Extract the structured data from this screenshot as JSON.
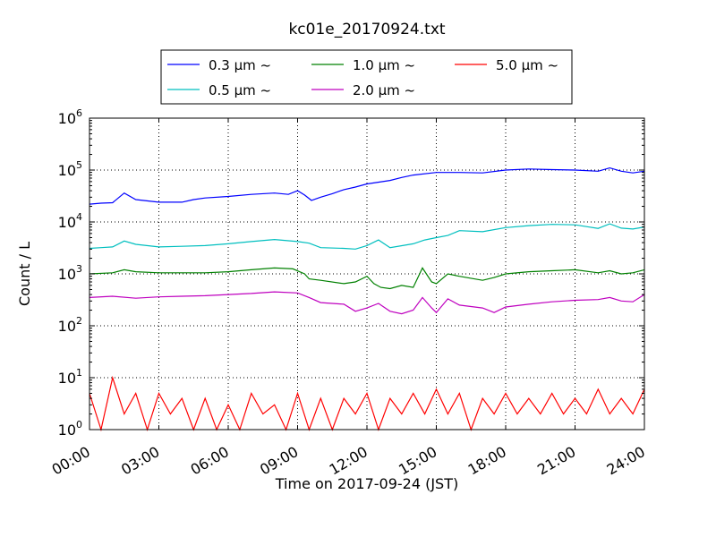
{
  "chart_data": {
    "type": "line",
    "title": "kc01e_20170924.txt",
    "xlabel": "Time on 2017-09-24 (JST)",
    "ylabel": "Count / L",
    "x_range_hours": [
      0,
      24
    ],
    "x_ticks": [
      {
        "hour": 0,
        "label": "00:00"
      },
      {
        "hour": 3,
        "label": "03:00"
      },
      {
        "hour": 6,
        "label": "06:00"
      },
      {
        "hour": 9,
        "label": "09:00"
      },
      {
        "hour": 12,
        "label": "12:00"
      },
      {
        "hour": 15,
        "label": "15:00"
      },
      {
        "hour": 18,
        "label": "18:00"
      },
      {
        "hour": 21,
        "label": "21:00"
      },
      {
        "hour": 24,
        "label": "24:00"
      }
    ],
    "y_scale": "log",
    "ylim": [
      1,
      1000000
    ],
    "y_ticks": [
      {
        "value": 1,
        "base": "10",
        "exp": "0"
      },
      {
        "value": 10,
        "base": "10",
        "exp": "1"
      },
      {
        "value": 100,
        "base": "10",
        "exp": "2"
      },
      {
        "value": 1000,
        "base": "10",
        "exp": "3"
      },
      {
        "value": 10000,
        "base": "10",
        "exp": "4"
      },
      {
        "value": 100000,
        "base": "10",
        "exp": "5"
      },
      {
        "value": 1000000,
        "base": "10",
        "exp": "6"
      }
    ],
    "grid": true,
    "legend_position": "top-center",
    "series": [
      {
        "name": "0.3 μm ~",
        "color": "#0000ff",
        "points": [
          [
            0,
            22000
          ],
          [
            0.5,
            23000
          ],
          [
            1,
            23500
          ],
          [
            1.5,
            36000
          ],
          [
            2,
            27000
          ],
          [
            3,
            24000
          ],
          [
            4,
            24000
          ],
          [
            4.5,
            27000
          ],
          [
            5,
            29000
          ],
          [
            6,
            31000
          ],
          [
            7,
            34000
          ],
          [
            8,
            36000
          ],
          [
            8.6,
            34000
          ],
          [
            9,
            40000
          ],
          [
            9.3,
            33000
          ],
          [
            9.6,
            26000
          ],
          [
            10,
            30000
          ],
          [
            10.5,
            35000
          ],
          [
            11,
            42000
          ],
          [
            11.5,
            47000
          ],
          [
            12,
            54000
          ],
          [
            13,
            63000
          ],
          [
            13.5,
            72000
          ],
          [
            14,
            80000
          ],
          [
            15,
            90000
          ],
          [
            16,
            90000
          ],
          [
            17,
            88000
          ],
          [
            18,
            100000
          ],
          [
            19,
            105000
          ],
          [
            20,
            102000
          ],
          [
            21,
            100000
          ],
          [
            22,
            95000
          ],
          [
            22.5,
            110000
          ],
          [
            23,
            95000
          ],
          [
            23.5,
            88000
          ],
          [
            24,
            95000
          ]
        ]
      },
      {
        "name": "0.5 μm ~",
        "color": "#00bfbf",
        "points": [
          [
            0,
            3100
          ],
          [
            0.5,
            3200
          ],
          [
            1,
            3300
          ],
          [
            1.5,
            4300
          ],
          [
            2,
            3700
          ],
          [
            3,
            3300
          ],
          [
            4,
            3400
          ],
          [
            5,
            3500
          ],
          [
            6,
            3800
          ],
          [
            7,
            4200
          ],
          [
            8,
            4600
          ],
          [
            9,
            4200
          ],
          [
            9.5,
            3900
          ],
          [
            10,
            3200
          ],
          [
            11,
            3100
          ],
          [
            11.5,
            3000
          ],
          [
            12,
            3500
          ],
          [
            12.5,
            4500
          ],
          [
            13,
            3200
          ],
          [
            14,
            3800
          ],
          [
            14.5,
            4500
          ],
          [
            15,
            5000
          ],
          [
            15.5,
            5500
          ],
          [
            16,
            6800
          ],
          [
            17,
            6500
          ],
          [
            18,
            7800
          ],
          [
            19,
            8500
          ],
          [
            20,
            9000
          ],
          [
            21,
            8800
          ],
          [
            22,
            7500
          ],
          [
            22.5,
            9200
          ],
          [
            23,
            7600
          ],
          [
            23.5,
            7300
          ],
          [
            24,
            8000
          ]
        ]
      },
      {
        "name": "1.0 μm ~",
        "color": "#008000",
        "points": [
          [
            0,
            1000
          ],
          [
            1,
            1050
          ],
          [
            1.5,
            1200
          ],
          [
            2,
            1100
          ],
          [
            3,
            1050
          ],
          [
            4,
            1050
          ],
          [
            5,
            1050
          ],
          [
            6,
            1100
          ],
          [
            7,
            1200
          ],
          [
            8,
            1300
          ],
          [
            8.8,
            1250
          ],
          [
            9.3,
            1000
          ],
          [
            9.5,
            800
          ],
          [
            10,
            750
          ],
          [
            11,
            650
          ],
          [
            11.5,
            700
          ],
          [
            12,
            900
          ],
          [
            12.3,
            650
          ],
          [
            12.6,
            550
          ],
          [
            13,
            520
          ],
          [
            13.5,
            600
          ],
          [
            14,
            550
          ],
          [
            14.4,
            1300
          ],
          [
            14.8,
            700
          ],
          [
            15,
            650
          ],
          [
            15.5,
            1000
          ],
          [
            16,
            900
          ],
          [
            17,
            750
          ],
          [
            17.5,
            850
          ],
          [
            18,
            1000
          ],
          [
            19,
            1100
          ],
          [
            20,
            1150
          ],
          [
            21,
            1200
          ],
          [
            22,
            1050
          ],
          [
            22.5,
            1150
          ],
          [
            23,
            1000
          ],
          [
            23.5,
            1050
          ],
          [
            24,
            1200
          ]
        ]
      },
      {
        "name": "2.0 μm ~",
        "color": "#bf00bf",
        "points": [
          [
            0,
            350
          ],
          [
            1,
            370
          ],
          [
            2,
            340
          ],
          [
            3,
            360
          ],
          [
            4,
            370
          ],
          [
            5,
            380
          ],
          [
            6,
            400
          ],
          [
            7,
            420
          ],
          [
            8,
            450
          ],
          [
            9,
            430
          ],
          [
            9.5,
            350
          ],
          [
            10,
            280
          ],
          [
            11,
            260
          ],
          [
            11.5,
            190
          ],
          [
            12,
            220
          ],
          [
            12.5,
            270
          ],
          [
            13,
            190
          ],
          [
            13.5,
            170
          ],
          [
            14,
            200
          ],
          [
            14.4,
            350
          ],
          [
            14.8,
            220
          ],
          [
            15,
            180
          ],
          [
            15.5,
            330
          ],
          [
            16,
            250
          ],
          [
            17,
            220
          ],
          [
            17.5,
            180
          ],
          [
            18,
            230
          ],
          [
            19,
            260
          ],
          [
            20,
            290
          ],
          [
            21,
            310
          ],
          [
            22,
            320
          ],
          [
            22.5,
            350
          ],
          [
            23,
            300
          ],
          [
            23.5,
            290
          ],
          [
            24,
            400
          ]
        ]
      },
      {
        "name": "5.0 μm ~",
        "color": "#ff0000",
        "points": [
          [
            0,
            5
          ],
          [
            0.5,
            1
          ],
          [
            1,
            10
          ],
          [
            1.5,
            2
          ],
          [
            2,
            5
          ],
          [
            2.5,
            1
          ],
          [
            3,
            5
          ],
          [
            3.5,
            2
          ],
          [
            4,
            4
          ],
          [
            4.5,
            1
          ],
          [
            5,
            4
          ],
          [
            5.5,
            1
          ],
          [
            6,
            3
          ],
          [
            6.5,
            1
          ],
          [
            7,
            5
          ],
          [
            7.5,
            2
          ],
          [
            8,
            3
          ],
          [
            8.5,
            1
          ],
          [
            9,
            5
          ],
          [
            9.5,
            1
          ],
          [
            10,
            4
          ],
          [
            10.5,
            1
          ],
          [
            11,
            4
          ],
          [
            11.5,
            2
          ],
          [
            12,
            5
          ],
          [
            12.5,
            1
          ],
          [
            13,
            4
          ],
          [
            13.5,
            2
          ],
          [
            14,
            5
          ],
          [
            14.5,
            2
          ],
          [
            15,
            6
          ],
          [
            15.5,
            2
          ],
          [
            16,
            5
          ],
          [
            16.5,
            1
          ],
          [
            17,
            4
          ],
          [
            17.5,
            2
          ],
          [
            18,
            5
          ],
          [
            18.5,
            2
          ],
          [
            19,
            4
          ],
          [
            19.5,
            2
          ],
          [
            20,
            5
          ],
          [
            20.5,
            2
          ],
          [
            21,
            4
          ],
          [
            21.5,
            2
          ],
          [
            22,
            6
          ],
          [
            22.5,
            2
          ],
          [
            23,
            4
          ],
          [
            23.5,
            2
          ],
          [
            24,
            6
          ]
        ]
      }
    ]
  }
}
